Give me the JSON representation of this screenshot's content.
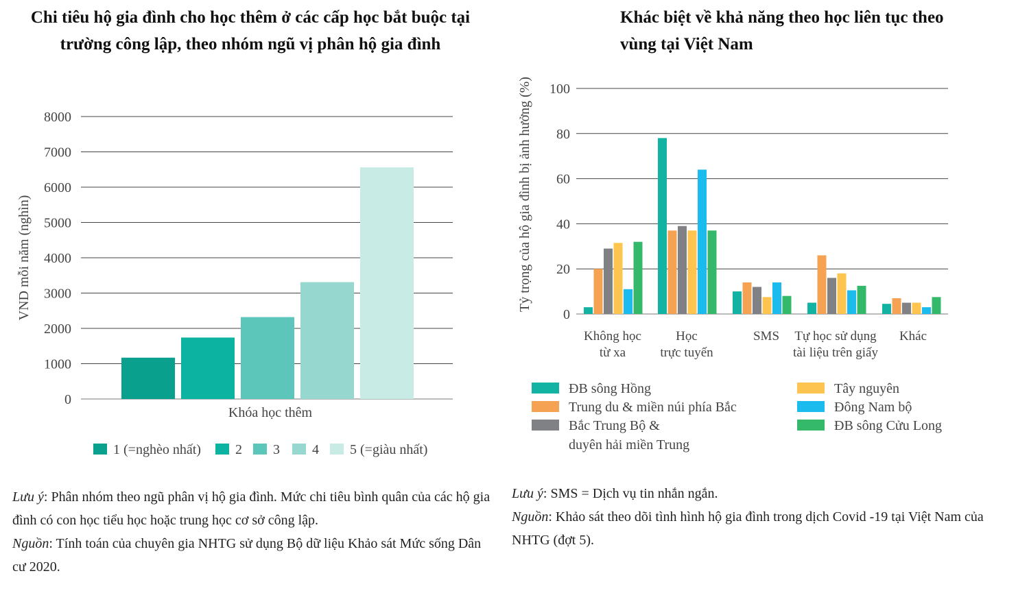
{
  "left": {
    "title": "Chi tiêu hộ gia đình cho học thêm ở các cấp học bắt buộc tại trường công lập, theo nhóm ngũ vị phân hộ gia đình",
    "note_label": "Lưu ý",
    "note_text": ": Phân nhóm theo ngũ phân vị hộ gia đình. Mức chi tiêu bình quân của các hộ gia đình có con học tiểu học hoặc trung học cơ sở công lập.",
    "source_label": "Nguồn",
    "source_text": ": Tính toán của chuyên gia NHTG sử dụng Bộ dữ liệu Khảo sát Mức sống Dân cư 2020."
  },
  "right": {
    "title": "Khác biệt về khả năng theo học liên tục theo vùng tại Việt Nam",
    "note_label": "Lưu ý",
    "note_text": ": SMS = Dịch vụ tin nhắn ngắn.",
    "source_label": "Nguồn",
    "source_text": ": Khảo sát theo dõi tình hình hộ gia đình trong dịch Covid -19 tại Việt Nam của NHTG (đợt 5)."
  },
  "chart_data": [
    {
      "type": "bar",
      "title": "Chi tiêu hộ gia đình cho học thêm ở các cấp học bắt buộc tại trường công lập, theo nhóm ngũ vị phân hộ gia đình",
      "xlabel": "Khóa học thêm",
      "ylabel": "VND mỗi năm (nghìn)",
      "ylim": [
        0,
        8000
      ],
      "yticks": [
        "0",
        "1000",
        "2000",
        "3000",
        "4000",
        "5000",
        "6000",
        "7000",
        "8000"
      ],
      "categories": [
        "Khóa học thêm"
      ],
      "series": [
        {
          "name": "1 (=nghèo nhất)",
          "values": [
            1170
          ],
          "color": "#0aa08e"
        },
        {
          "name": "2",
          "values": [
            1740
          ],
          "color": "#0db3a1"
        },
        {
          "name": "3",
          "values": [
            2320
          ],
          "color": "#5cc6bb"
        },
        {
          "name": "4",
          "values": [
            3310
          ],
          "color": "#96d7cf"
        },
        {
          "name": "5 (=giàu nhất)",
          "values": [
            6560
          ],
          "color": "#c9ebe6"
        }
      ],
      "legend": "bottom",
      "grid": true
    },
    {
      "type": "bar",
      "title": "Khác biệt về khả năng theo học liên tục theo vùng tại Việt Nam",
      "xlabel": "",
      "ylabel": "Tỷ trọng của hộ gia đình bị ảnh hưởng (%)",
      "ylim": [
        0,
        100
      ],
      "yticks": [
        "0",
        "20",
        "40",
        "60",
        "80",
        "100"
      ],
      "categories": [
        [
          "Không học",
          "từ xa"
        ],
        [
          "Học",
          "trực tuyến"
        ],
        [
          "SMS"
        ],
        [
          "Tự học sử dụng",
          "tài liệu trên giấy"
        ],
        [
          "Khác"
        ]
      ],
      "series": [
        {
          "name": "ĐB sông Hồng",
          "values": [
            3,
            78,
            10,
            5,
            4.5
          ],
          "color": "#12b3a2"
        },
        {
          "name": "Trung du & miền núi phía Bắc",
          "values": [
            20,
            37,
            14,
            26,
            7
          ],
          "color": "#f6a253"
        },
        {
          "name": "Bắc Trung Bộ & duyên hải miền Trung",
          "values": [
            29,
            39,
            12,
            16,
            5
          ],
          "color": "#808184"
        },
        {
          "name": "Tây nguyên",
          "values": [
            31.5,
            37,
            7.5,
            18,
            5
          ],
          "color": "#fdc54f"
        },
        {
          "name": "Đông Nam bộ",
          "values": [
            11,
            64,
            14,
            10.5,
            3
          ],
          "color": "#1cbbee"
        },
        {
          "name": "ĐB sông Cửu Long",
          "values": [
            32,
            37,
            8,
            12.5,
            7.5
          ],
          "color": "#34b86a"
        }
      ],
      "legend_rows": [
        [
          "ĐB sông Hồng",
          "Trung du & miền núi phía Bắc",
          "Bắc Trung Bộ &",
          "duyên hải miền Trung"
        ],
        [
          "Tây nguyên",
          "Đông Nam bộ",
          "ĐB sông Cửu Long"
        ]
      ],
      "legend": "bottom",
      "grid": true
    }
  ]
}
